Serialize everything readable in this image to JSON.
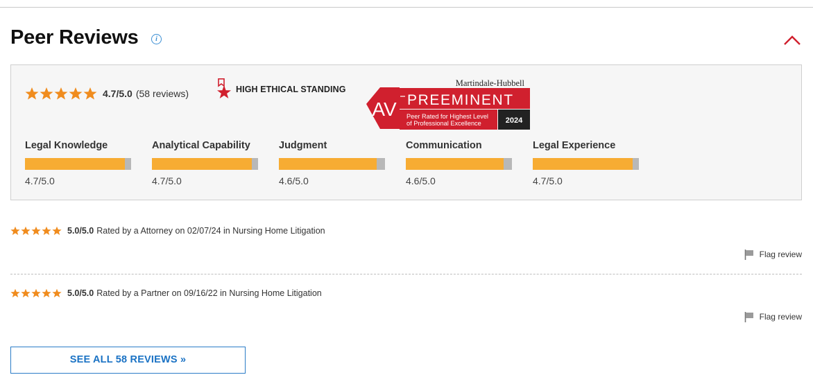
{
  "section": {
    "title": "Peer Reviews",
    "info_icon": "info-icon",
    "collapse_icon": "chevron-up-icon",
    "accent_color": "#d0202e"
  },
  "summary": {
    "overall_rating": "4.7/5.0",
    "review_count_text": "(58 reviews)",
    "stars_filled": 5,
    "star_color": "#f08c1e",
    "ethical_standing": {
      "icon": "star-ribbon-icon",
      "label": "HIGH ETHICAL STANDING"
    },
    "av_badge": {
      "brand": "Martindale-Hubbell",
      "mark": "AV",
      "rating": "PREEMINENT",
      "description_line1": "Peer Rated for Highest Level",
      "description_line2": "of Professional Excellence",
      "year": "2024",
      "badge_color": "#d0202e"
    },
    "categories": [
      {
        "label": "Legal Knowledge",
        "score": "4.7/5.0",
        "value": 4.7
      },
      {
        "label": "Analytical Capability",
        "score": "4.7/5.0",
        "value": 4.7
      },
      {
        "label": "Judgment",
        "score": "4.6/5.0",
        "value": 4.6
      },
      {
        "label": "Communication",
        "score": "4.6/5.0",
        "value": 4.6
      },
      {
        "label": "Legal Experience",
        "score": "4.7/5.0",
        "value": 4.7
      }
    ],
    "bar_max": 5.0,
    "bar_color": "#f7ac33"
  },
  "reviews": [
    {
      "score": "5.0/5.0",
      "text": "Rated by a Attorney on 02/07/24 in Nursing Home Litigation",
      "flag_label": "Flag review",
      "stars": 5
    },
    {
      "score": "5.0/5.0",
      "text": "Rated by a Partner on 09/16/22 in Nursing Home Litigation",
      "flag_label": "Flag review",
      "stars": 5
    }
  ],
  "see_all": {
    "label": "SEE ALL 58 REVIEWS »"
  }
}
